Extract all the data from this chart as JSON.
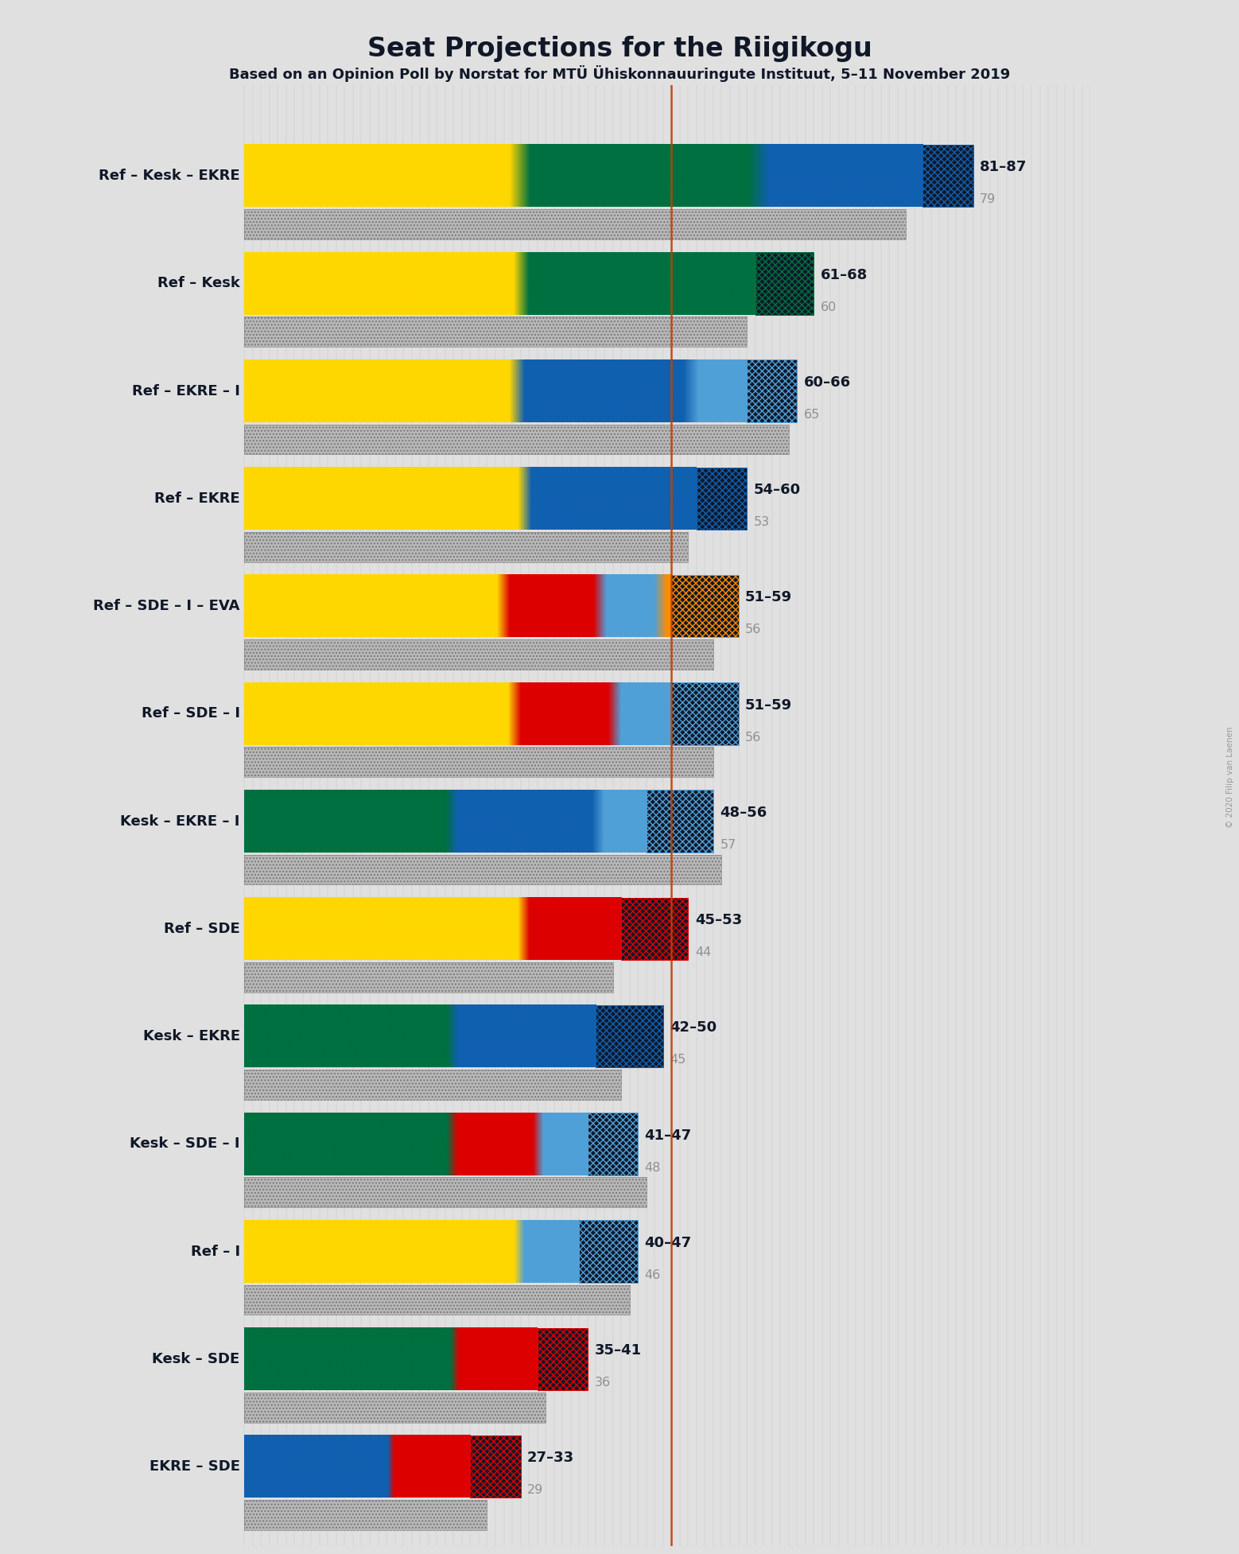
{
  "title": "Seat Projections for the Riigikogu",
  "subtitle": "Based on an Opinion Poll by Norstat for MTÜ Ühiskonnauuringute Instituut, 5–11 November 2019",
  "copyright": "© 2020 Filip van Laenen",
  "majority_line": 51,
  "x_max": 101,
  "background_color": "#e0e0e0",
  "party_colors": {
    "Ref": "#FFD700",
    "Kesk": "#007040",
    "EKRE": "#1060B0",
    "SDE": "#DD0000",
    "I": "#50A0D8",
    "EVA": "#FF8C00"
  },
  "coalitions": [
    {
      "name": "Ref – Kesk – EKRE",
      "underline": false,
      "range_low": 81,
      "range_high": 87,
      "median": 79,
      "parties": [
        "Ref",
        "Kesk",
        "EKRE"
      ],
      "seats": [
        29,
        26,
        19
      ]
    },
    {
      "name": "Ref – Kesk",
      "underline": false,
      "range_low": 61,
      "range_high": 68,
      "median": 60,
      "parties": [
        "Ref",
        "Kesk"
      ],
      "seats": [
        29,
        26
      ]
    },
    {
      "name": "Ref – EKRE – I",
      "underline": false,
      "range_low": 60,
      "range_high": 66,
      "median": 65,
      "parties": [
        "Ref",
        "EKRE",
        "I"
      ],
      "seats": [
        29,
        19,
        7
      ]
    },
    {
      "name": "Ref – EKRE",
      "underline": false,
      "range_low": 54,
      "range_high": 60,
      "median": 53,
      "parties": [
        "Ref",
        "EKRE"
      ],
      "seats": [
        29,
        19
      ]
    },
    {
      "name": "Ref – SDE – I – EVA",
      "underline": false,
      "range_low": 51,
      "range_high": 59,
      "median": 56,
      "parties": [
        "Ref",
        "SDE",
        "I",
        "EVA"
      ],
      "seats": [
        29,
        11,
        7,
        2
      ]
    },
    {
      "name": "Ref – SDE – I",
      "underline": false,
      "range_low": 51,
      "range_high": 59,
      "median": 56,
      "parties": [
        "Ref",
        "SDE",
        "I"
      ],
      "seats": [
        29,
        11,
        7
      ]
    },
    {
      "name": "Kesk – EKRE – I",
      "underline": true,
      "range_low": 48,
      "range_high": 56,
      "median": 57,
      "parties": [
        "Kesk",
        "EKRE",
        "I"
      ],
      "seats": [
        26,
        19,
        7
      ]
    },
    {
      "name": "Ref – SDE",
      "underline": false,
      "range_low": 45,
      "range_high": 53,
      "median": 44,
      "parties": [
        "Ref",
        "SDE"
      ],
      "seats": [
        29,
        11
      ]
    },
    {
      "name": "Kesk – EKRE",
      "underline": false,
      "range_low": 42,
      "range_high": 50,
      "median": 45,
      "parties": [
        "Kesk",
        "EKRE"
      ],
      "seats": [
        26,
        19
      ]
    },
    {
      "name": "Kesk – SDE – I",
      "underline": false,
      "range_low": 41,
      "range_high": 47,
      "median": 48,
      "parties": [
        "Kesk",
        "SDE",
        "I"
      ],
      "seats": [
        26,
        11,
        7
      ]
    },
    {
      "name": "Ref – I",
      "underline": false,
      "range_low": 40,
      "range_high": 47,
      "median": 46,
      "parties": [
        "Ref",
        "I"
      ],
      "seats": [
        29,
        7
      ]
    },
    {
      "name": "Kesk – SDE",
      "underline": false,
      "range_low": 35,
      "range_high": 41,
      "median": 36,
      "parties": [
        "Kesk",
        "SDE"
      ],
      "seats": [
        26,
        11
      ]
    },
    {
      "name": "EKRE – SDE",
      "underline": false,
      "range_low": 27,
      "range_high": 33,
      "median": 29,
      "parties": [
        "EKRE",
        "SDE"
      ],
      "seats": [
        19,
        11
      ]
    }
  ]
}
